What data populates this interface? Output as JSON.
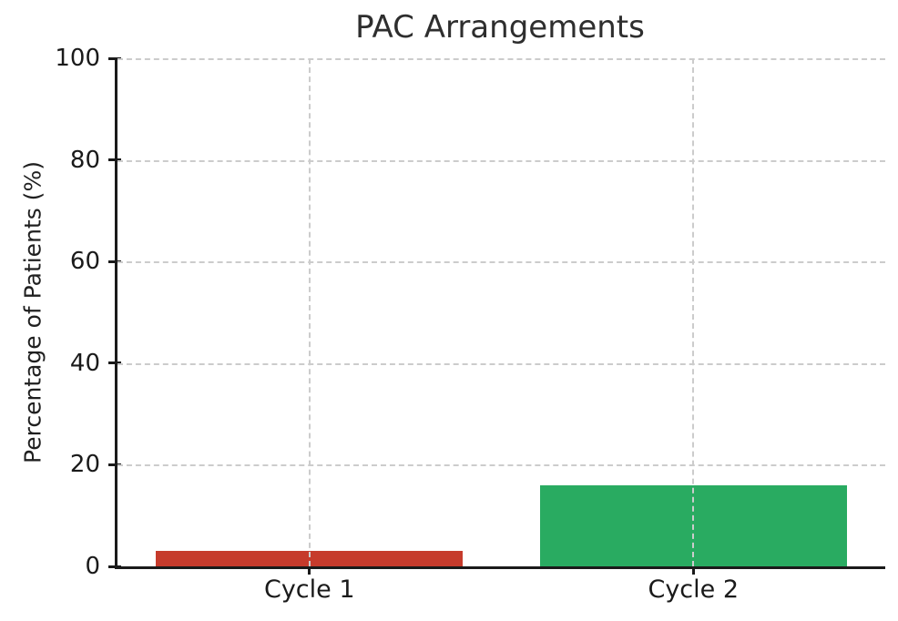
{
  "chart_data": {
    "type": "bar",
    "title": "PAC Arrangements",
    "categories": [
      "Cycle 1",
      "Cycle 2"
    ],
    "values": [
      3,
      16
    ],
    "bar_colors": [
      "#c63b2c",
      "#29ab61"
    ],
    "xlabel": "",
    "ylabel": "Percentage of Patients (%)",
    "ylim": [
      0,
      100
    ],
    "yticks": [
      0,
      20,
      40,
      60,
      80,
      100
    ],
    "bar_width_fraction": 0.8,
    "grid": "dashed",
    "grid_color": "#cccccc",
    "axis_color": "#1a1a1a",
    "text_color": "#1f1f1f",
    "title_color": "#2e2e2e",
    "legend": "none"
  }
}
